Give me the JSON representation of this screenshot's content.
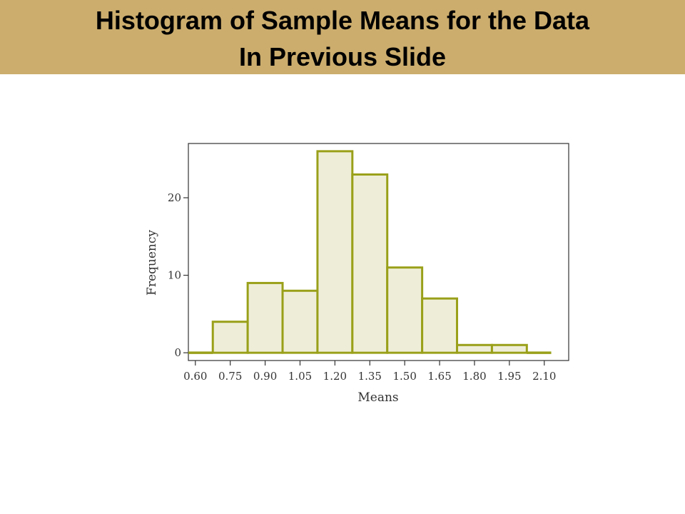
{
  "slide": {
    "title_line1": "Histogram of Sample Means for the Data",
    "title_line2": "In Previous Slide",
    "band_color": "#ccad6d"
  },
  "chart_data": {
    "type": "bar",
    "xlabel": "Means",
    "ylabel": "Frequency",
    "x_tick_labels": [
      "0.60",
      "0.75",
      "0.90",
      "1.05",
      "1.20",
      "1.35",
      "1.50",
      "1.65",
      "1.80",
      "1.95",
      "2.10"
    ],
    "x_ticks": [
      0.6,
      0.75,
      0.9,
      1.05,
      1.2,
      1.35,
      1.5,
      1.65,
      1.8,
      1.95,
      2.1
    ],
    "y_ticks": [
      0,
      10,
      20
    ],
    "xlim": [
      0.57,
      2.205
    ],
    "ylim": [
      -1,
      27
    ],
    "bin_edges": [
      0.675,
      0.825,
      0.975,
      1.125,
      1.275,
      1.425,
      1.575,
      1.725,
      1.875,
      2.025
    ],
    "values": [
      4,
      9,
      8,
      26,
      23,
      11,
      7,
      1,
      1
    ],
    "grid": false,
    "bar_fill": "#eeeed8",
    "bar_stroke": "#9aa019"
  }
}
